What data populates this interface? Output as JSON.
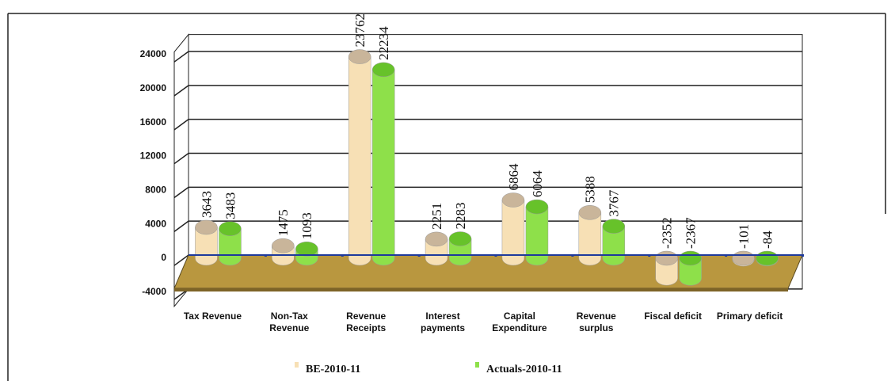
{
  "chart_data": {
    "type": "bar",
    "categories": [
      "Tax Revenue",
      "Non-Tax Revenue",
      "Revenue Receipts",
      "Interest payments",
      "Capital Expenditure",
      "Revenue surplus",
      "Fiscal deficit",
      "Primary deficit"
    ],
    "series": [
      {
        "name": "BE-2010-11",
        "color": "#f7e0b5",
        "values": [
          3643,
          1475,
          23762,
          2251,
          6864,
          5388,
          -2352,
          -101
        ]
      },
      {
        "name": "Actuals-2010-11",
        "color": "#8ee04a",
        "values": [
          3483,
          1093,
          22234,
          2283,
          6064,
          3767,
          -2367,
          -84
        ]
      }
    ],
    "ylim": [
      -4000,
      26000
    ],
    "yticks": [
      -4000,
      0,
      4000,
      8000,
      12000,
      16000,
      20000,
      24000
    ],
    "grid": true
  }
}
